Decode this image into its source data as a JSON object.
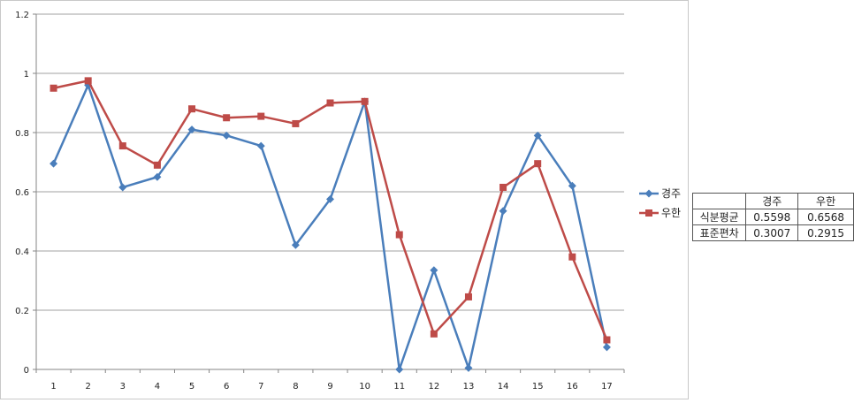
{
  "chart_data": {
    "type": "line",
    "x": [
      1,
      2,
      3,
      4,
      5,
      6,
      7,
      8,
      9,
      10,
      11,
      12,
      13,
      14,
      15,
      16,
      17
    ],
    "ylim": [
      0,
      1.2
    ],
    "yticks": [
      "0",
      "0.2",
      "0.4",
      "0.6",
      "0.8",
      "1",
      "1.2"
    ],
    "ytick_values": [
      0,
      0.2,
      0.4,
      0.6,
      0.8,
      1.0,
      1.2
    ],
    "grid": "horizontal",
    "legend_position": "right",
    "series": [
      {
        "name": "경주",
        "color": "#4a7ebb",
        "marker": "diamond",
        "values": [
          0.695,
          0.96,
          0.615,
          0.65,
          0.81,
          0.79,
          0.755,
          0.42,
          0.575,
          0.905,
          0.0,
          0.335,
          0.005,
          0.535,
          0.79,
          0.62,
          0.075
        ]
      },
      {
        "name": "우한",
        "color": "#be4b48",
        "marker": "square",
        "values": [
          0.95,
          0.975,
          0.755,
          0.69,
          0.88,
          0.85,
          0.855,
          0.83,
          0.9,
          0.905,
          0.455,
          0.12,
          0.245,
          0.615,
          0.695,
          0.38,
          0.1
        ]
      }
    ]
  },
  "stats_table": {
    "header": [
      "",
      "경주",
      "우한"
    ],
    "rows": [
      [
        "식분평균",
        "0.5598",
        "0.6568"
      ],
      [
        "표준편차",
        "0.3007",
        "0.2915"
      ]
    ]
  }
}
